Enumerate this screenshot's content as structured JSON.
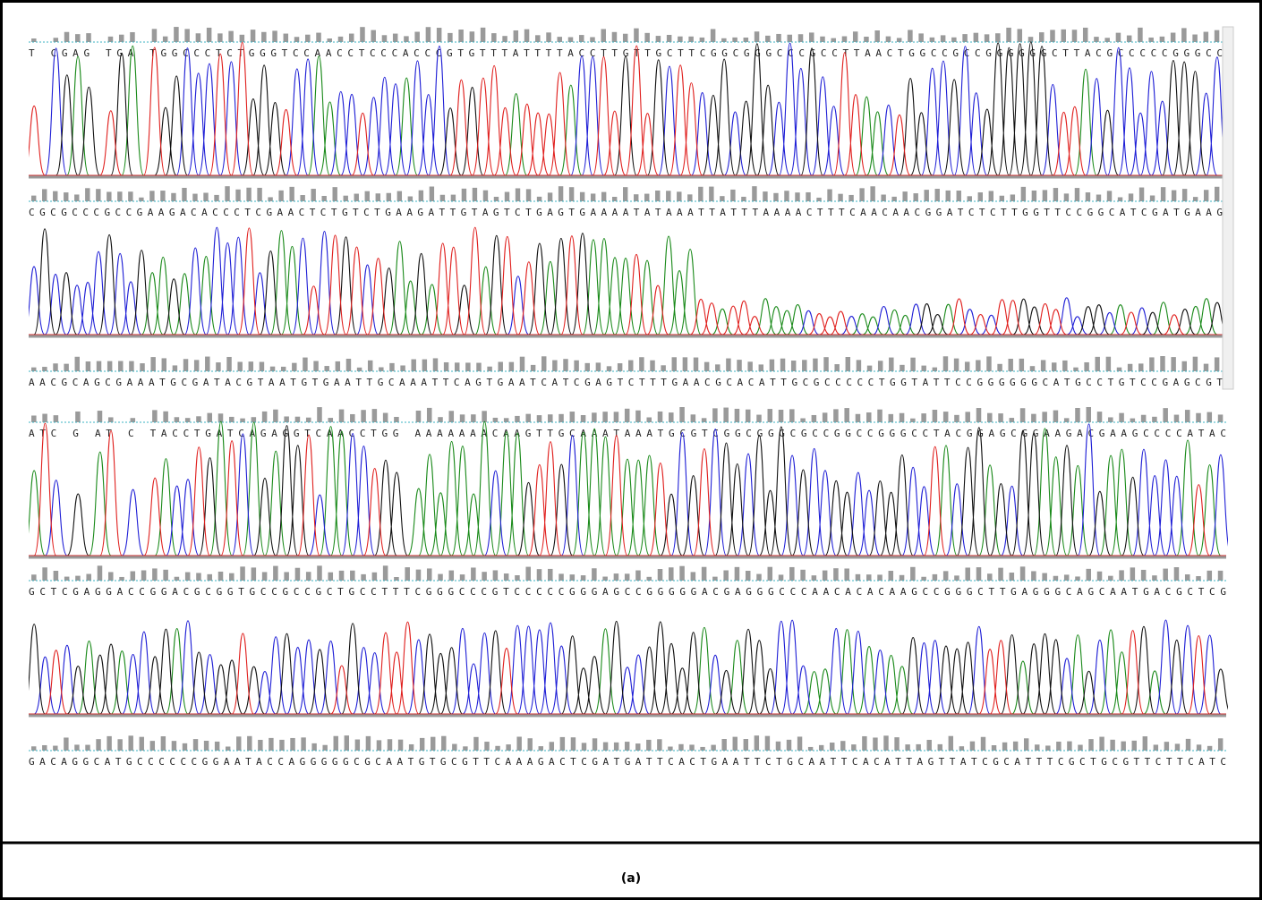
{
  "panels": [
    {
      "rows": [
        "T CGAG TGA TGGCCCTCTGGGTCCAACCTCCCACCCGTGTTTATTTTACCTTGTTGCTTCGGCGGGCCCGCCTTAACTGGCCGCCGGGGGGCTTACGCCCCCGGGCC",
        "CGCGCCCGCCGAAGACACCCTCGAACTCTGTCTGAAGATTGTAGTCTGAGTGAAAATATAAATTATTTAAAACTTTCAACAACGGATCTCTTGGTTCCGGCATCGATGAAG",
        "AACGCAGCGAAATGCGATACGTAATGTGAATTGCAAATTCAGTGAATCATCGAGTCTTTGAACGCACATTGCGCCCCCTGGTATTCCGGGGGGCATGCCTGTCCGAGCGT"
      ]
    },
    {
      "rows": [
        "ATC G AT C TACCTGATCAGAGGTCAACCTGG AAAAAAACAAGTTGCAAATAAATGCGTCGGCGGGCGCCGGCCGGGCCTACGGAGCGGAAGACGAAGCCCCATAC",
        "GCTCGAGGACCGGACGCGGTGCCGCCGCTGCCTTTCGGGCCCGTCCCCCGGGAGCCGGGGGACGAGGGCCCAACACACAAGCCGGGCTTGAGGGCAGCAATGACGCTCG",
        "GACAGGCATGCCCCCCGGAATACCAGGGGGCGCAATGTGCGTTCAAAGACTCGATGATTCACTGAATTCTGCAATTCACATTAGTTATCGCATTTCGCTGCGTTCTTCATC"
      ]
    }
  ],
  "caption": "(a)"
}
